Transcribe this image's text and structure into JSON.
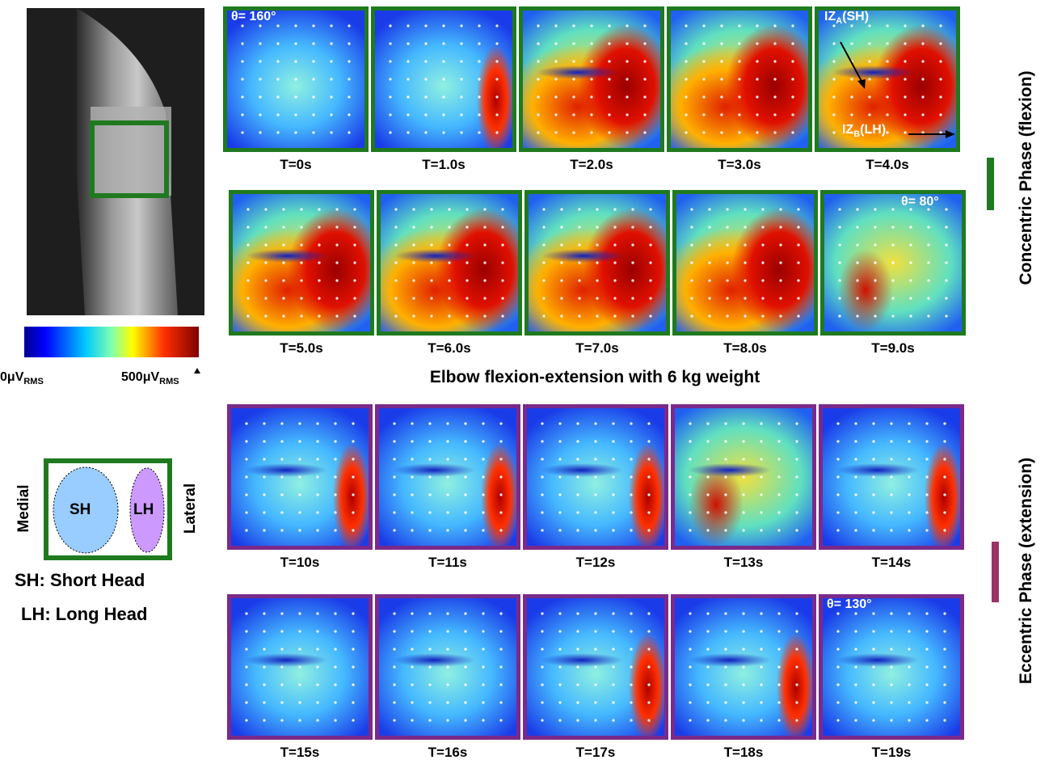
{
  "colorbar": {
    "min_label": {
      "text": "0μV",
      "sub": "RMS"
    },
    "max_label": {
      "text": "500μV",
      "sub": "RMS"
    }
  },
  "legend": {
    "medial": "Medial",
    "lateral": "Lateral",
    "sh": "SH",
    "lh": "LH",
    "key": [
      "SH: Short Head",
      "LH: Long Head"
    ]
  },
  "caption": "Elbow flexion-extension with 6 kg weight",
  "phases": [
    {
      "text": "Concentric Phase (flexion)",
      "color": "#1f7a1f"
    },
    {
      "text": "Eccentric Phase (extension)",
      "color": "#993366"
    }
  ],
  "annotations": [
    {
      "main": "IZ",
      "sub": "A",
      "rest": "(SH)"
    },
    {
      "main": "IZ",
      "sub": "B",
      "rest": "(LH)"
    }
  ],
  "panel_rows": [
    {
      "color": "#1f7a1f",
      "panels": [
        {
          "label": "T=0s",
          "angle": "θ= 160°"
        },
        {
          "label": "T=1.0s"
        },
        {
          "label": "T=2.0s"
        },
        {
          "label": "T=3.0s"
        },
        {
          "label": "T=4.0s"
        }
      ]
    },
    {
      "color": "#1f7a1f",
      "panels": [
        {
          "label": "T=5.0s"
        },
        {
          "label": "T=6.0s"
        },
        {
          "label": "T=7.0s"
        },
        {
          "label": "T=8.0s"
        },
        {
          "label": "T=9.0s",
          "angle": "θ= 80°"
        }
      ]
    },
    {
      "color": "#7a2a8a",
      "panels": [
        {
          "label": "T=10s"
        },
        {
          "label": "T=11s"
        },
        {
          "label": "T=12s"
        },
        {
          "label": "T=13s"
        },
        {
          "label": "T=14s"
        }
      ]
    },
    {
      "color": "#7a2a8a",
      "panels": [
        {
          "label": "T=15s"
        },
        {
          "label": "T=16s"
        },
        {
          "label": "T=17s"
        },
        {
          "label": "T=18s"
        },
        {
          "label": "T=19s",
          "angle": "θ= 130°"
        }
      ]
    }
  ]
}
